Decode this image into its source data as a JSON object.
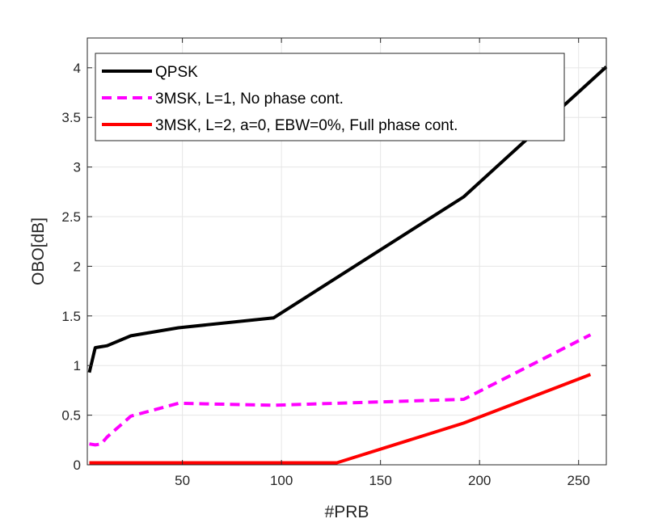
{
  "chart_data": {
    "type": "line",
    "title": "",
    "xlabel": "#PRB",
    "ylabel": "OBO[dB]",
    "xlim": [
      2,
      264
    ],
    "ylim": [
      0,
      4.3
    ],
    "xticks": [
      50,
      100,
      150,
      200,
      250
    ],
    "xtick_labels": [
      "50",
      "100",
      "150",
      "200",
      "250"
    ],
    "yticks": [
      0,
      0.5,
      1,
      1.5,
      2,
      2.5,
      3,
      3.5,
      4
    ],
    "ytick_labels": [
      "0",
      "0.5",
      "1",
      "1.5",
      "2",
      "2.5",
      "3",
      "3.5",
      "4"
    ],
    "grid": true,
    "legend_position": "top-left",
    "series": [
      {
        "name": "QPSK",
        "color": "#000000",
        "style": "solid",
        "x": [
          3,
          6,
          9,
          12,
          24,
          48,
          96,
          192,
          264
        ],
        "y": [
          0.93,
          1.18,
          1.19,
          1.2,
          1.3,
          1.38,
          1.48,
          2.7,
          4.01
        ]
      },
      {
        "name": "3MSK, L=1, No phase cont.",
        "color": "#ff00ff",
        "style": "dashed",
        "x": [
          3,
          6,
          9,
          12,
          24,
          48,
          96,
          192,
          256
        ],
        "y": [
          0.21,
          0.2,
          0.21,
          0.28,
          0.49,
          0.62,
          0.6,
          0.66,
          1.31
        ]
      },
      {
        "name": "3MSK, L=2, a=0, EBW=0%, Full phase cont.",
        "color": "#ff0000",
        "style": "solid",
        "x": [
          3,
          12,
          24,
          48,
          96,
          128,
          192,
          256
        ],
        "y": [
          0.02,
          0.02,
          0.02,
          0.02,
          0.02,
          0.02,
          0.42,
          0.91
        ]
      }
    ]
  }
}
